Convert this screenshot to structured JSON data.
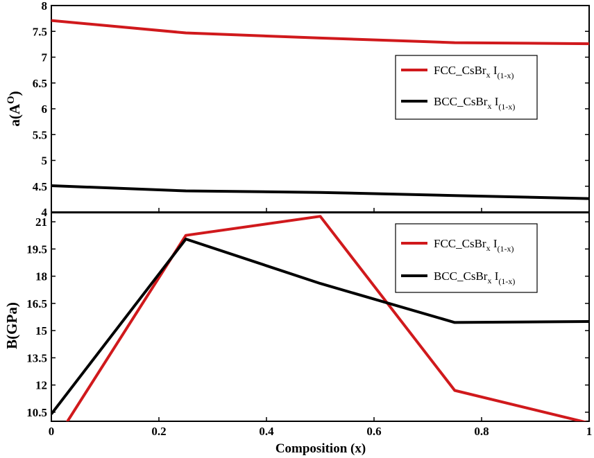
{
  "chart_data": [
    {
      "type": "line",
      "ylabel": "a(A",
      "ylabel_sup": "O",
      "ylabel_close": ")",
      "xlim": [
        0,
        1
      ],
      "ylim": [
        4,
        8
      ],
      "yticks": [
        {
          "value": 4,
          "label": "4"
        },
        {
          "value": 4.5,
          "label": "4.5"
        },
        {
          "value": 5,
          "label": "5"
        },
        {
          "value": 5.5,
          "label": "5.5"
        },
        {
          "value": 6,
          "label": "6"
        },
        {
          "value": 6.5,
          "label": "6.5"
        },
        {
          "value": 7,
          "label": "7"
        },
        {
          "value": 7.5,
          "label": "7.5"
        },
        {
          "value": 8,
          "label": "8"
        }
      ],
      "legend_position": "right",
      "series": [
        {
          "name": "FCC_CsBr",
          "sub1": "x",
          "mid": " I",
          "sub2": "(1-x)",
          "color": "#d0191c",
          "points": [
            [
              0,
              7.71
            ],
            [
              0.25,
              7.47
            ],
            [
              0.5,
              7.37
            ],
            [
              0.75,
              7.28
            ],
            [
              1,
              7.26
            ]
          ]
        },
        {
          "name": "BCC_CsBr",
          "sub1": "x",
          "mid": " I",
          "sub2": "(1-x)",
          "color": "#000000",
          "points": [
            [
              0,
              4.51
            ],
            [
              0.25,
              4.41
            ],
            [
              0.5,
              4.38
            ],
            [
              0.75,
              4.32
            ],
            [
              1,
              4.26
            ]
          ]
        }
      ]
    },
    {
      "type": "line",
      "ylabel": "B(GPa)",
      "xlabel": "Composition (x)",
      "xlim": [
        0,
        1
      ],
      "ylim": [
        10,
        21.5
      ],
      "xticks": [
        {
          "value": 0,
          "label": "0"
        },
        {
          "value": 0.2,
          "label": "0.2"
        },
        {
          "value": 0.4,
          "label": "0.4"
        },
        {
          "value": 0.6,
          "label": "0.6"
        },
        {
          "value": 0.8,
          "label": "0.8"
        },
        {
          "value": 1,
          "label": "1"
        }
      ],
      "yticks": [
        {
          "value": 10.5,
          "label": "10.5"
        },
        {
          "value": 12,
          "label": "12"
        },
        {
          "value": 13.5,
          "label": "13.5"
        },
        {
          "value": 15,
          "label": "15"
        },
        {
          "value": 16.5,
          "label": "16.5"
        },
        {
          "value": 18,
          "label": "18"
        },
        {
          "value": 19.5,
          "label": "19.5"
        },
        {
          "value": 21,
          "label": "21"
        }
      ],
      "legend_position": "top-right",
      "series": [
        {
          "name": "FCC_CsBr",
          "sub1": "x",
          "mid": " I",
          "sub2": "(1-x)",
          "color": "#d0191c",
          "points": [
            [
              0,
              8.6
            ],
            [
              0.25,
              20.25
            ],
            [
              0.5,
              21.3
            ],
            [
              0.75,
              11.7
            ],
            [
              1,
              9.9
            ]
          ]
        },
        {
          "name": "BCC_CsBr",
          "sub1": "x",
          "mid": " I",
          "sub2": "(1-x)",
          "color": "#000000",
          "points": [
            [
              0,
              10.4
            ],
            [
              0.25,
              20.05
            ],
            [
              0.5,
              17.6
            ],
            [
              0.75,
              15.45
            ],
            [
              1,
              15.5
            ]
          ]
        }
      ]
    }
  ]
}
